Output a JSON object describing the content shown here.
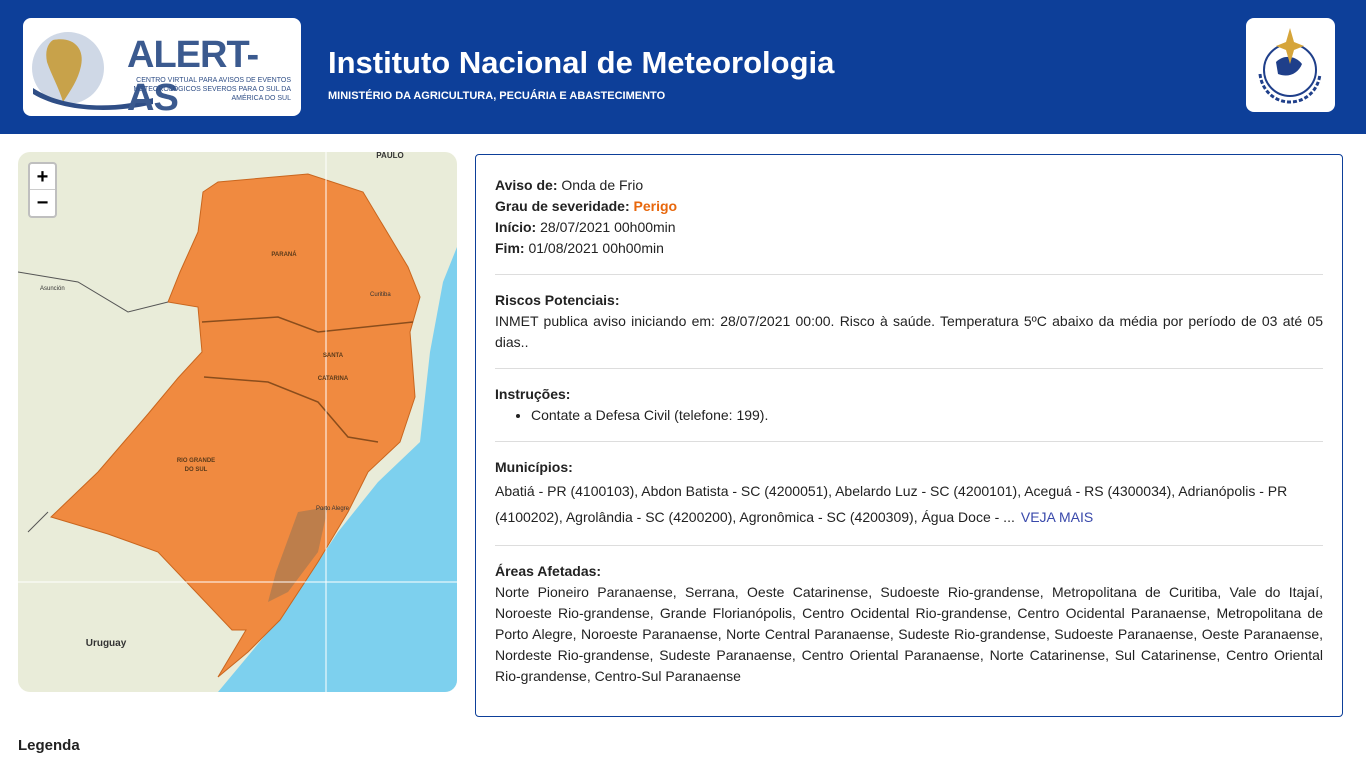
{
  "header": {
    "logo_text": "ALERT-AS",
    "logo_subtitle": [
      "CENTRO VIRTUAL PARA AVISOS DE EVENTOS",
      "METEOROLÓGICOS SEVEROS PARA O SUL DA AMÉRICA DO SUL"
    ],
    "title": "Instituto Nacional de Meteorologia",
    "subtitle": "MINISTÉRIO DA AGRICULTURA, PECUÁRIA E ABASTECIMENTO"
  },
  "map": {
    "zoom_in": "+",
    "zoom_out": "−",
    "labels": [
      "PARANÁ",
      "SANTA",
      "CATARINA",
      "RIO GRANDE",
      "DO SUL",
      "Uruguay",
      "PAULO",
      "Asunción",
      "Curitiba",
      "Porto Alegre"
    ]
  },
  "alert": {
    "fields": [
      {
        "label": "Aviso de:",
        "value": "Onda de Frio"
      },
      {
        "label": "Grau de severidade:",
        "value": "Perigo"
      },
      {
        "label": "Início:",
        "value": "28/07/2021 00h00min"
      },
      {
        "label": "Fim:",
        "value": "01/08/2021 00h00min"
      }
    ],
    "risks": {
      "title": "Riscos Potenciais:",
      "text": "INMET publica aviso iniciando em: 28/07/2021 00:00. Risco à saúde. Temperatura 5ºC abaixo da média por período de 03 até 05 dias.."
    },
    "instructions": {
      "title": "Instruções:",
      "items": [
        "Contate a Defesa Civil (telefone: 199)."
      ]
    },
    "municipalities": {
      "title": "Municípios:",
      "text": "Abatiá - PR (4100103), Abdon Batista - SC (4200051), Abelardo Luz - SC (4200101), Aceguá - RS (4300034), Adrianópolis - PR (4100202), Agrolândia - SC (4200200), Agronômica - SC (4200309), Água Doce - ...",
      "more": "VEJA MAIS"
    },
    "areas": {
      "title": "Áreas Afetadas:",
      "text": "Norte Pioneiro Paranaense, Serrana, Oeste Catarinense, Sudoeste Rio-grandense, Metropolitana de Curitiba, Vale do Itajaí, Noroeste Rio-grandense, Grande Florianópolis, Centro Ocidental Rio-grandense, Centro Ocidental Paranaense, Metropolitana de Porto Alegre, Noroeste Paranaense, Norte Central Paranaense, Sudeste Rio-grandense, Sudoeste Paranaense, Oeste Paranaense, Nordeste Rio-grandense, Sudeste Paranaense, Centro Oriental Paranaense, Norte Catarinense, Sul Catarinense, Centro Oriental Rio-grandense, Centro-Sul Paranaense"
    }
  },
  "legend_title": "Legenda"
}
